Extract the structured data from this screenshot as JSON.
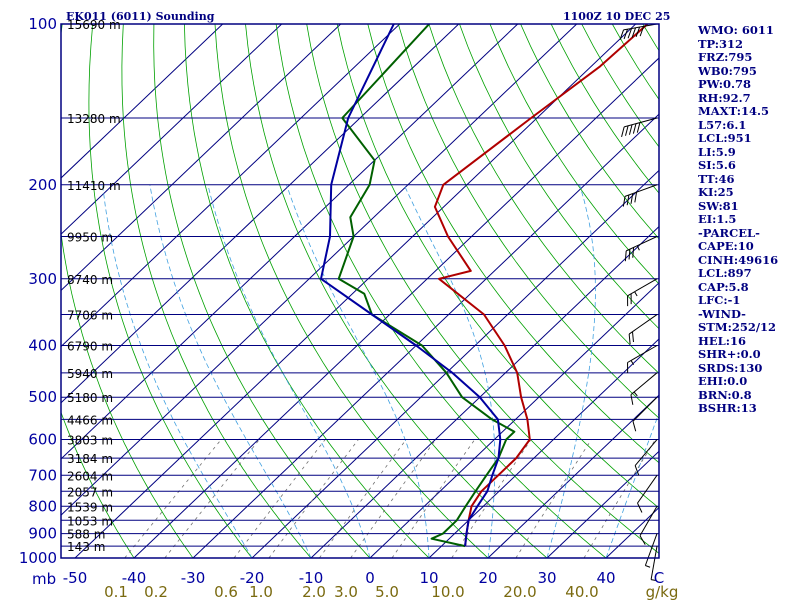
{
  "chart_data": {
    "type": "skew-t",
    "title_left": "EK011 (6011) Sounding",
    "title_right": "1100Z 10 DEC 25",
    "pressure_axis": {
      "unit_label": "mb",
      "ticks": [
        100,
        200,
        300,
        400,
        500,
        600,
        700,
        800,
        900,
        1000
      ],
      "range": [
        100,
        1000
      ]
    },
    "temperature_axis": {
      "unit_label": "C",
      "ticks": [
        -50,
        -40,
        -30,
        -20,
        -10,
        0,
        10,
        20,
        30,
        40
      ]
    },
    "mixing_ratio_axis": {
      "unit_label": "g/kg",
      "ticks": [
        "0.1",
        "0.2",
        "0.6",
        "1.0",
        "2.0",
        "3.0",
        "5.0",
        "10.0",
        "20.0",
        "40.0"
      ]
    },
    "height_labels": [
      {
        "p": 100,
        "label": "15690 m"
      },
      {
        "p": 150,
        "label": "13280 m"
      },
      {
        "p": 200,
        "label": "11410 m"
      },
      {
        "p": 250,
        "label": "9950 m"
      },
      {
        "p": 300,
        "label": "8740 m"
      },
      {
        "p": 350,
        "label": "7706 m"
      },
      {
        "p": 400,
        "label": "6790 m"
      },
      {
        "p": 450,
        "label": "5940 m"
      },
      {
        "p": 500,
        "label": "5180 m"
      },
      {
        "p": 550,
        "label": "4466 m"
      },
      {
        "p": 600,
        "label": "3803 m"
      },
      {
        "p": 650,
        "label": "3184 m"
      },
      {
        "p": 700,
        "label": "2604 m"
      },
      {
        "p": 750,
        "label": "2057 m"
      },
      {
        "p": 800,
        "label": "1539 m"
      },
      {
        "p": 850,
        "label": "1053 m"
      },
      {
        "p": 900,
        "label": "588 m"
      },
      {
        "p": 950,
        "label": "143 m"
      }
    ],
    "series": [
      {
        "name": "temperature",
        "color": "#b00000",
        "points": [
          [
            100,
            -48
          ],
          [
            120,
            -48.5
          ],
          [
            150,
            -51
          ],
          [
            200,
            -54
          ],
          [
            220,
            -51.5
          ],
          [
            250,
            -44
          ],
          [
            290,
            -34
          ],
          [
            300,
            -38
          ],
          [
            350,
            -24
          ],
          [
            400,
            -15
          ],
          [
            450,
            -8
          ],
          [
            500,
            -3
          ],
          [
            550,
            2
          ],
          [
            600,
            6
          ],
          [
            650,
            7
          ],
          [
            700,
            7
          ],
          [
            750,
            7
          ],
          [
            800,
            8
          ],
          [
            850,
            10
          ],
          [
            900,
            12
          ],
          [
            950,
            14
          ]
        ]
      },
      {
        "name": "dewpoint",
        "color": "#006000",
        "points": [
          [
            100,
            -85
          ],
          [
            150,
            -83
          ],
          [
            180,
            -70
          ],
          [
            200,
            -66.5
          ],
          [
            230,
            -64
          ],
          [
            250,
            -60
          ],
          [
            300,
            -55
          ],
          [
            320,
            -48
          ],
          [
            350,
            -43
          ],
          [
            400,
            -29
          ],
          [
            450,
            -20
          ],
          [
            500,
            -13
          ],
          [
            550,
            -4
          ],
          [
            580,
            2
          ],
          [
            600,
            2
          ],
          [
            650,
            4
          ],
          [
            700,
            5
          ],
          [
            750,
            6
          ],
          [
            800,
            7
          ],
          [
            850,
            8
          ],
          [
            900,
            8
          ],
          [
            920,
            7
          ],
          [
            950,
            14
          ]
        ]
      },
      {
        "name": "parcel",
        "color": "#0000a0",
        "points": [
          [
            100,
            -91
          ],
          [
            150,
            -82
          ],
          [
            200,
            -73
          ],
          [
            250,
            -64
          ],
          [
            300,
            -58
          ],
          [
            350,
            -43
          ],
          [
            400,
            -30
          ],
          [
            450,
            -19
          ],
          [
            500,
            -10
          ],
          [
            550,
            -3
          ],
          [
            600,
            1
          ],
          [
            650,
            4
          ],
          [
            700,
            6
          ],
          [
            750,
            8
          ],
          [
            800,
            9
          ],
          [
            850,
            10
          ],
          [
            900,
            12
          ],
          [
            950,
            14
          ]
        ]
      }
    ],
    "wind_barbs": [
      {
        "p": 100,
        "dir": 260,
        "speed": 60
      },
      {
        "p": 150,
        "dir": 255,
        "speed": 50
      },
      {
        "p": 200,
        "dir": 250,
        "speed": 40
      },
      {
        "p": 250,
        "dir": 245,
        "speed": 35
      },
      {
        "p": 300,
        "dir": 240,
        "speed": 25
      },
      {
        "p": 350,
        "dir": 235,
        "speed": 20
      },
      {
        "p": 400,
        "dir": 240,
        "speed": 15
      },
      {
        "p": 450,
        "dir": 230,
        "speed": 15
      },
      {
        "p": 500,
        "dir": 225,
        "speed": 10
      },
      {
        "p": 600,
        "dir": 220,
        "speed": 10
      },
      {
        "p": 700,
        "dir": 215,
        "speed": 10
      },
      {
        "p": 800,
        "dir": 210,
        "speed": 10
      },
      {
        "p": 900,
        "dir": 200,
        "speed": 5
      },
      {
        "p": 950,
        "dir": 190,
        "speed": 5
      }
    ],
    "colors": {
      "isobar": "#000080",
      "isotherm": "#000080",
      "dry_adiabat": "#00a000",
      "moist_adiabat": "#40a0e0",
      "mixing_ratio": "#707070",
      "frame": "#000080"
    }
  },
  "indices": [
    "WMO: 6011",
    "TP:312",
    "FRZ:795",
    "WB0:795",
    "PW:0.78",
    "RH:92.7",
    "MAXT:14.5",
    "L57:6.1",
    "LCL:951",
    "LI:5.9",
    "SI:5.6",
    "TT:46",
    "KI:25",
    "SW:81",
    "EI:1.5",
    "-PARCEL-",
    "CAPE:10",
    "CINH:49616",
    "LCL:897",
    "CAP:5.8",
    "LFC:-1",
    "-WIND-",
    "STM:252/12",
    "HEL:16",
    "SHR+:0.0",
    "SRDS:130",
    "EHI:0.0",
    "BRN:0.8",
    "BSHR:13"
  ]
}
